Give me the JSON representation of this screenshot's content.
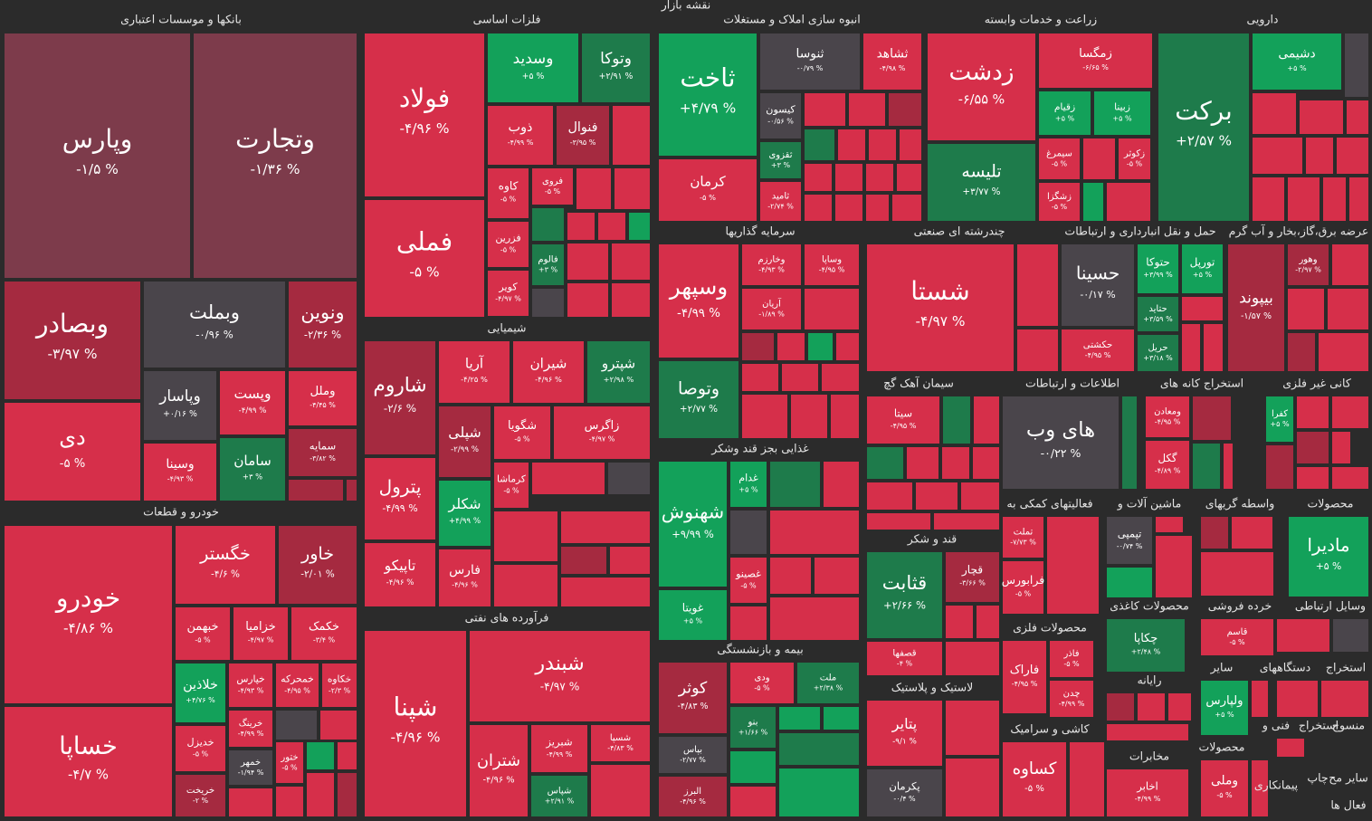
{
  "title": "نقشه بازار",
  "sectors": [
    {
      "name": "بانکها و موسسات اعتباری",
      "tiles": [
        {
          "name": "وپارس",
          "change": "-۱/۵ %"
        },
        {
          "name": "وتجارت",
          "change": "-۱/۳۶ %"
        },
        {
          "name": "وبصادر",
          "change": "-۳/۹۷ %"
        },
        {
          "name": "دی",
          "change": "-۵ %"
        },
        {
          "name": "وبملت",
          "change": "-۰/۹۶ %"
        },
        {
          "name": "ونوین",
          "change": "-۲/۳۶ %"
        },
        {
          "name": "وپاسار",
          "change": "+۰/۱۶ %"
        },
        {
          "name": "وپست",
          "change": "-۴/۹۹ %"
        },
        {
          "name": "وملل",
          "change": "-۴/۴۵ %"
        },
        {
          "name": "سمایه",
          "change": "-۳/۸۲ %"
        },
        {
          "name": "وسینا",
          "change": "-۴/۹۳ %"
        },
        {
          "name": "سامان",
          "change": "+۳ %"
        }
      ]
    },
    {
      "name": "خودرو و قطعات",
      "tiles": [
        {
          "name": "خودرو",
          "change": "-۴/۸۶ %"
        },
        {
          "name": "خساپا",
          "change": "-۴/۷ %"
        },
        {
          "name": "خگستر",
          "change": "-۴/۶ %"
        },
        {
          "name": "خاور",
          "change": "-۲/۰۱ %"
        },
        {
          "name": "خبهمن",
          "change": "-۵ %"
        },
        {
          "name": "خزامیا",
          "change": "-۴/۹۷ %"
        },
        {
          "name": "خکمک",
          "change": "-۳/۴ %"
        },
        {
          "name": "خلاذین",
          "change": "+۴/۷۶ %"
        },
        {
          "name": "خپارس",
          "change": "-۴/۹۳ %"
        },
        {
          "name": "خمحرکه",
          "change": "-۴/۹۵ %"
        },
        {
          "name": "خکاوه",
          "change": "-۲/۳ %"
        },
        {
          "name": "خرینگ",
          "change": "-۴/۹۹ %"
        },
        {
          "name": "خدیزل",
          "change": "-۵ %"
        },
        {
          "name": "خمهر",
          "change": "-۱/۹۴ %"
        },
        {
          "name": "خریخت",
          "change": "-۲ %"
        },
        {
          "name": "ختور",
          "change": "-۵ %"
        }
      ]
    },
    {
      "name": "فلزات اساسی",
      "tiles": [
        {
          "name": "فولاد",
          "change": "-۴/۹۶ %"
        },
        {
          "name": "فملی",
          "change": "-۵ %"
        },
        {
          "name": "وسدید",
          "change": "+۵ %"
        },
        {
          "name": "وتوکا",
          "change": "+۲/۹۱ %"
        },
        {
          "name": "ذوب",
          "change": "-۴/۹۹ %"
        },
        {
          "name": "فنوال",
          "change": "-۳/۹۵ %"
        },
        {
          "name": "کاوه",
          "change": "-۵ %"
        },
        {
          "name": "فروی",
          "change": "-۵ %"
        },
        {
          "name": "فزرین",
          "change": "-۵ %"
        },
        {
          "name": "کویر",
          "change": "-۴/۹۷ %"
        },
        {
          "name": "فالوم",
          "change": "+۳ %"
        }
      ]
    },
    {
      "name": "شیمیایی",
      "tiles": [
        {
          "name": "شاروم",
          "change": "-۲/۶ %"
        },
        {
          "name": "پترول",
          "change": "-۴/۹۹ %"
        },
        {
          "name": "تاپیکو",
          "change": "-۴/۹۶ %"
        },
        {
          "name": "آریا",
          "change": "-۴/۲۵ %"
        },
        {
          "name": "شیران",
          "change": "-۴/۹۶ %"
        },
        {
          "name": "شپترو",
          "change": "+۲/۹۸ %"
        },
        {
          "name": "شپلی",
          "change": "-۲/۹۹ %"
        },
        {
          "name": "شگویا",
          "change": "-۵ %"
        },
        {
          "name": "زاگرس",
          "change": "-۴/۹۷ %"
        },
        {
          "name": "شکلر",
          "change": "+۴/۹۹ %"
        },
        {
          "name": "کرماشا",
          "change": "-۵ %"
        },
        {
          "name": "فارس",
          "change": "-۴/۹۶ %"
        }
      ]
    },
    {
      "name": "فرآورده های نفتی",
      "tiles": [
        {
          "name": "شپنا",
          "change": "-۴/۹۶ %"
        },
        {
          "name": "شبندر",
          "change": "-۴/۹۷ %"
        },
        {
          "name": "شتران",
          "change": "-۴/۹۶ %"
        },
        {
          "name": "شبریز",
          "change": "-۴/۹۹ %"
        },
        {
          "name": "شسپا",
          "change": "-۴/۸۳ %"
        },
        {
          "name": "شپاس",
          "change": "+۲/۹۱ %"
        }
      ]
    },
    {
      "name": "انبوه سازی املاک و مستغلات",
      "tiles": [
        {
          "name": "ثاخت",
          "change": "+۴/۷۹ %"
        },
        {
          "name": "کرمان",
          "change": "-۵ %"
        },
        {
          "name": "ثنوسا",
          "change": "-۰/۷۹ %"
        },
        {
          "name": "ثشاهد",
          "change": "-۴/۹۸ %"
        },
        {
          "name": "کیسون",
          "change": "-۰/۵۶ %"
        },
        {
          "name": "ثقزوی",
          "change": "+۳ %"
        },
        {
          "name": "ثامید",
          "change": "-۲/۷۴ %"
        }
      ]
    },
    {
      "name": "زراعت و خدمات وابسته",
      "tiles": [
        {
          "name": "زدشت",
          "change": "-۶/۵۵ %"
        },
        {
          "name": "تلیسه",
          "change": "+۳/۷۷ %"
        },
        {
          "name": "زمگسا",
          "change": "-۶/۶۵ %"
        },
        {
          "name": "زقیام",
          "change": "+۵ %"
        },
        {
          "name": "زبینا",
          "change": "+۵ %"
        },
        {
          "name": "سیمرغ",
          "change": "-۵ %"
        },
        {
          "name": "زکوثر",
          "change": "-۵ %"
        },
        {
          "name": "زشگزا",
          "change": "-۵ %"
        }
      ]
    },
    {
      "name": "دارویی",
      "tiles": [
        {
          "name": "برکت",
          "change": "+۲/۵۷ %"
        },
        {
          "name": "دشیمی",
          "change": "+۵ %"
        }
      ]
    },
    {
      "name": "سرمایه گذاریها",
      "tiles": [
        {
          "name": "وسپهر",
          "change": "-۴/۹۹ %"
        },
        {
          "name": "وتوصا",
          "change": "+۲/۷۷ %"
        },
        {
          "name": "وخارزم",
          "change": "-۴/۹۳ %"
        },
        {
          "name": "وساپا",
          "change": "-۴/۹۵ %"
        },
        {
          "name": "آریان",
          "change": "-۱/۸۹ %"
        }
      ]
    },
    {
      "name": "غذایی بجز قند وشکر",
      "tiles": [
        {
          "name": "شهنوش",
          "change": "+۹/۹۹ %"
        },
        {
          "name": "غویتا",
          "change": "+۵ %"
        },
        {
          "name": "غدام",
          "change": "+۵ %"
        },
        {
          "name": "غصینو",
          "change": "-۵ %"
        }
      ]
    },
    {
      "name": "بیمه و بازنشستگی",
      "tiles": [
        {
          "name": "کوثر",
          "change": "-۴/۸۳ %"
        },
        {
          "name": "بپاس",
          "change": "-۲/۷۷ %"
        },
        {
          "name": "البرز",
          "change": "-۴/۹۶ %"
        },
        {
          "name": "ودی",
          "change": "-۵ %"
        },
        {
          "name": "ملت",
          "change": "+۲/۳۸ %"
        },
        {
          "name": "بنو",
          "change": "+۱/۶۶ %"
        }
      ]
    },
    {
      "name": "چندرشته ای صنعتی",
      "tiles": [
        {
          "name": "شستا",
          "change": "-۴/۹۷ %"
        }
      ]
    },
    {
      "name": "حمل و نقل انبارداری و ارتباطات",
      "tiles": [
        {
          "name": "حسینا",
          "change": "-۰/۱۷ %"
        },
        {
          "name": "حکشتی",
          "change": "-۴/۹۵ %"
        },
        {
          "name": "حتوکا",
          "change": "+۳/۹۹ %"
        },
        {
          "name": "تورپل",
          "change": "+۵ %"
        },
        {
          "name": "حتاید",
          "change": "+۳/۵۹ %"
        },
        {
          "name": "حریل",
          "change": "+۳/۱۸ %"
        }
      ]
    },
    {
      "name": "عرضه برق،گاز،بخار و آب گرم",
      "tiles": [
        {
          "name": "بیپوند",
          "change": "-۱/۵۷ %"
        },
        {
          "name": "وهور",
          "change": "-۲/۹۷ %"
        }
      ]
    },
    {
      "name": "سیمان آهک گچ",
      "tiles": [
        {
          "name": "سیتا",
          "change": "-۴/۹۵ %"
        }
      ]
    },
    {
      "name": "قند و شکر",
      "tiles": [
        {
          "name": "قثابت",
          "change": "+۲/۶۶ %"
        },
        {
          "name": "قچار",
          "change": "-۳/۶۶ %"
        },
        {
          "name": "قصفها",
          "change": "-۴ %"
        }
      ]
    },
    {
      "name": "لاستیک و پلاستیک",
      "tiles": [
        {
          "name": "پتایر",
          "change": "-۹/۱ %"
        },
        {
          "name": "پکرمان",
          "change": "-۰/۴ %"
        }
      ]
    },
    {
      "name": "اطلاعات و ارتباطات",
      "tiles": [
        {
          "name": "های وب",
          "change": "-۰/۲۲ %"
        }
      ]
    },
    {
      "name": "استخراج کانه های",
      "tiles": [
        {
          "name": "ومعادن",
          "change": "-۴/۹۵ %"
        },
        {
          "name": "گکل",
          "change": "-۴/۸۹ %"
        }
      ]
    },
    {
      "name": "کانی غیر فلزی",
      "tiles": [
        {
          "name": "کفرا",
          "change": "+۵ %"
        }
      ]
    },
    {
      "name": "فعالیتهای کمکی به",
      "tiles": [
        {
          "name": "تملت",
          "change": "-۷/۷۳ %"
        },
        {
          "name": "فرابورس",
          "change": "-۵ %"
        }
      ]
    },
    {
      "name": "ماشین آلات و",
      "tiles": [
        {
          "name": "تپمپی",
          "change": "-۰/۷۴ %"
        }
      ]
    },
    {
      "name": "محصولات",
      "tiles": [
        {
          "name": "مادیرا",
          "change": "+۵ %"
        }
      ]
    },
    {
      "name": "محصولات کاغذی",
      "tiles": [
        {
          "name": "چکاپا",
          "change": "+۲/۴۸ %"
        }
      ]
    },
    {
      "name": "خرده فروشی",
      "tiles": [
        {
          "name": "قاسم",
          "change": "-۵ %"
        }
      ]
    },
    {
      "name": "محصولات فلزی",
      "tiles": [
        {
          "name": "فاذر",
          "change": "-۵ %"
        },
        {
          "name": "چدن",
          "change": "-۴/۹۹ %"
        },
        {
          "name": "فاراک",
          "change": "-۴/۹۵ %"
        }
      ]
    },
    {
      "name": "کاشی و سرامیک",
      "tiles": [
        {
          "name": "کساوه",
          "change": "-۵ %"
        }
      ]
    },
    {
      "name": "مخابرات",
      "tiles": [
        {
          "name": "اخابر",
          "change": "-۴/۹۹ %"
        }
      ]
    },
    {
      "name": "سایر",
      "tiles": [
        {
          "name": "ولپارس",
          "change": "+۵ %"
        }
      ]
    },
    {
      "name": "محصولات",
      "tiles": [
        {
          "name": "وملی",
          "change": "-۵ %"
        }
      ]
    }
  ],
  "labels": [
    "واسطه گریهای",
    "وسایل ارتباطی",
    "رایانه",
    "دستگاههای",
    "استخراج",
    "فنی و",
    "استخراج",
    "منسوج",
    "پیمانکاری",
    "چاپ",
    "سایر مح",
    "فعال ها"
  ]
}
